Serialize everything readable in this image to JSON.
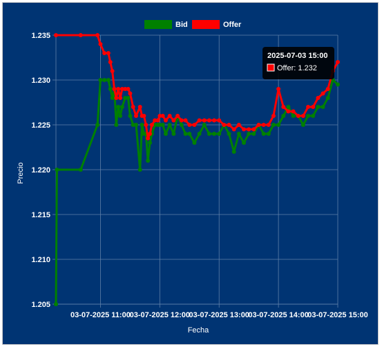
{
  "colors": {
    "background": "#003473",
    "grid": "#5f7fa8",
    "text": "#ffffff",
    "bid": "#008000",
    "offer": "#ff0000",
    "tooltip_bg": "#000000"
  },
  "legend": {
    "bid_label": "Bid",
    "offer_label": "Offer"
  },
  "tooltip": {
    "title": "2025-07-03 15:00",
    "body": "Offer: 1.232"
  },
  "chart_data": {
    "type": "line",
    "title": "",
    "xlabel": "Fecha",
    "ylabel": "Precio",
    "x_tick_labels": [
      "03-07-2025 11:00",
      "03-07-2025 12:00",
      "03-07-2025 13:00",
      "03-07-2025 14:00",
      "03-07-2025 15:00"
    ],
    "x_tick_values": [
      "11:00",
      "12:00",
      "13:00",
      "14:00",
      "15:00"
    ],
    "xlim": [
      "10:15",
      "15:00"
    ],
    "ylim": [
      1.205,
      1.235
    ],
    "y_ticks": [
      1.205,
      1.21,
      1.215,
      1.22,
      1.225,
      1.23,
      1.235
    ],
    "grid": true,
    "legend_position": "top",
    "series": [
      {
        "name": "Bid",
        "x": [
          "10:15",
          "10:16",
          "10:40",
          "10:57",
          "11:00",
          "11:04",
          "11:08",
          "11:10",
          "11:12",
          "11:14",
          "11:16",
          "11:18",
          "11:20",
          "11:22",
          "11:25",
          "11:28",
          "11:30",
          "11:33",
          "11:36",
          "11:40",
          "11:42",
          "11:44",
          "11:46",
          "11:48",
          "11:50",
          "11:52",
          "11:55",
          "11:58",
          "12:00",
          "12:03",
          "12:06",
          "12:10",
          "12:14",
          "12:18",
          "12:22",
          "12:26",
          "12:30",
          "12:35",
          "12:40",
          "12:45",
          "12:50",
          "12:55",
          "13:00",
          "13:05",
          "13:10",
          "13:15",
          "13:20",
          "13:25",
          "13:30",
          "13:35",
          "13:40",
          "13:45",
          "13:50",
          "13:55",
          "14:00",
          "14:05",
          "14:10",
          "14:15",
          "14:20",
          "14:25",
          "14:30",
          "14:35",
          "14:40",
          "14:45",
          "14:50",
          "14:55",
          "15:00"
        ],
        "y": [
          1.205,
          1.22,
          1.22,
          1.225,
          1.23,
          1.23,
          1.23,
          1.229,
          1.228,
          1.229,
          1.225,
          1.227,
          1.226,
          1.227,
          1.228,
          1.228,
          1.226,
          1.225,
          1.225,
          1.22,
          1.225,
          1.224,
          1.224,
          1.221,
          1.223,
          1.224,
          1.225,
          1.225,
          1.225,
          1.225,
          1.224,
          1.225,
          1.224,
          1.226,
          1.225,
          1.224,
          1.224,
          1.223,
          1.224,
          1.225,
          1.224,
          1.224,
          1.224,
          1.225,
          1.224,
          1.222,
          1.224,
          1.223,
          1.224,
          1.224,
          1.225,
          1.224,
          1.224,
          1.225,
          1.225,
          1.226,
          1.227,
          1.226,
          1.226,
          1.225,
          1.226,
          1.226,
          1.227,
          1.227,
          1.228,
          1.23,
          1.2295
        ]
      },
      {
        "name": "Offer",
        "x": [
          "10:15",
          "10:40",
          "10:57",
          "11:00",
          "11:04",
          "11:08",
          "11:10",
          "11:12",
          "11:14",
          "11:16",
          "11:18",
          "11:20",
          "11:22",
          "11:25",
          "11:28",
          "11:30",
          "11:33",
          "11:36",
          "11:40",
          "11:42",
          "11:44",
          "11:46",
          "11:48",
          "11:50",
          "11:52",
          "11:55",
          "11:58",
          "12:00",
          "12:03",
          "12:06",
          "12:10",
          "12:14",
          "12:18",
          "12:22",
          "12:26",
          "12:30",
          "12:35",
          "12:40",
          "12:45",
          "12:50",
          "12:55",
          "13:00",
          "13:05",
          "13:10",
          "13:15",
          "13:20",
          "13:25",
          "13:30",
          "13:35",
          "13:40",
          "13:45",
          "13:50",
          "13:55",
          "14:00",
          "14:05",
          "14:10",
          "14:15",
          "14:20",
          "14:25",
          "14:30",
          "14:35",
          "14:40",
          "14:45",
          "14:50",
          "14:55",
          "15:00"
        ],
        "y": [
          1.235,
          1.235,
          1.235,
          1.234,
          1.233,
          1.233,
          1.232,
          1.231,
          1.229,
          1.228,
          1.229,
          1.228,
          1.229,
          1.229,
          1.229,
          1.2285,
          1.227,
          1.226,
          1.227,
          1.226,
          1.226,
          1.225,
          1.2235,
          1.224,
          1.225,
          1.2255,
          1.2255,
          1.226,
          1.226,
          1.2255,
          1.226,
          1.2255,
          1.226,
          1.2255,
          1.2255,
          1.225,
          1.225,
          1.2255,
          1.2255,
          1.2255,
          1.2255,
          1.2255,
          1.225,
          1.225,
          1.2245,
          1.225,
          1.2245,
          1.2245,
          1.2245,
          1.225,
          1.225,
          1.225,
          1.226,
          1.229,
          1.227,
          1.2265,
          1.2265,
          1.226,
          1.226,
          1.227,
          1.227,
          1.228,
          1.2285,
          1.229,
          1.231,
          1.232
        ]
      }
    ]
  }
}
